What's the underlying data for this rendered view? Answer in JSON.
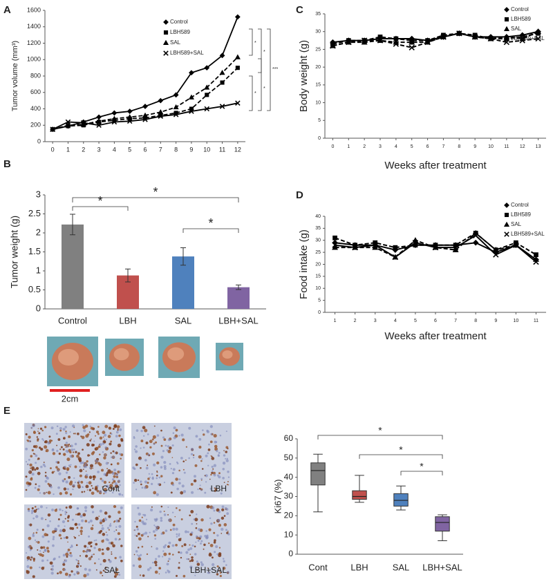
{
  "panel_labels": [
    "A",
    "B",
    "C",
    "D",
    "E"
  ],
  "scale_bar": "2cm",
  "micrographs": [
    "Cont",
    "LBH",
    "SAL",
    "LBH+SAL"
  ],
  "chart_data": [
    {
      "type": "line",
      "ylabel": "Tumor volume (mm³)",
      "x": [
        0,
        1,
        2,
        3,
        4,
        5,
        6,
        7,
        8,
        9,
        10,
        11,
        12
      ],
      "xlim": [
        -0.5,
        12.5
      ],
      "xticks": [
        0,
        1,
        2,
        3,
        4,
        5,
        6,
        7,
        8,
        9,
        10,
        11,
        12
      ],
      "ylim": [
        0,
        1600
      ],
      "yticks": [
        0,
        200,
        400,
        600,
        800,
        1000,
        1200,
        1400,
        1600
      ],
      "legend": "upper center",
      "series": [
        {
          "name": "Control",
          "color": "#000000",
          "marker": "diamond",
          "dash": "solid",
          "values": [
            150,
            190,
            240,
            300,
            350,
            370,
            430,
            500,
            570,
            840,
            900,
            1050,
            1520
          ]
        },
        {
          "name": "LBH589",
          "color": "#000000",
          "marker": "square",
          "dash": "dashed",
          "values": [
            150,
            190,
            200,
            240,
            260,
            280,
            290,
            320,
            350,
            400,
            570,
            720,
            900
          ]
        },
        {
          "name": "SAL",
          "color": "#000000",
          "marker": "triangle",
          "dash": "dashed",
          "values": [
            150,
            200,
            210,
            250,
            280,
            300,
            320,
            360,
            420,
            540,
            660,
            840,
            1030
          ]
        },
        {
          "name": "LBH589+SAL",
          "color": "#000000",
          "marker": "cross",
          "dash": "solid",
          "values": [
            150,
            240,
            230,
            200,
            240,
            250,
            270,
            310,
            330,
            370,
            400,
            430,
            470
          ]
        }
      ],
      "annotations": [
        "*",
        "*",
        "***",
        "*",
        "*"
      ]
    },
    {
      "type": "bar",
      "ylabel": "Tumor weight (g)",
      "categories": [
        "Control",
        "LBH",
        "SAL",
        "LBH+SAL"
      ],
      "values": [
        2.22,
        0.88,
        1.38,
        0.57
      ],
      "errors": [
        0.27,
        0.17,
        0.23,
        0.06
      ],
      "colors": [
        "#808080",
        "#c0504d",
        "#4f81bd",
        "#8064a2"
      ],
      "ylim": [
        0,
        3
      ],
      "yticks": [
        0,
        0.5,
        1,
        1.5,
        2,
        2.5,
        3
      ],
      "annotations": [
        "*",
        "*",
        "*"
      ]
    },
    {
      "type": "line",
      "ylabel": "Body weight (g)",
      "xlabel": "Weeks after treatment",
      "x": [
        0,
        1,
        2,
        3,
        4,
        5,
        6,
        7,
        8,
        9,
        10,
        11,
        12,
        13
      ],
      "xlim": [
        -0.5,
        13.5
      ],
      "xticks": [
        0,
        1,
        2,
        3,
        4,
        5,
        6,
        7,
        8,
        9,
        10,
        11,
        12,
        13
      ],
      "ylim": [
        0,
        35
      ],
      "yticks": [
        0,
        5,
        10,
        15,
        20,
        25,
        30,
        35
      ],
      "legend": "upper right",
      "series": [
        {
          "name": "Control",
          "color": "#000000",
          "marker": "diamond",
          "dash": "solid",
          "values": [
            27,
            27.5,
            27.5,
            28,
            28,
            28,
            27.5,
            28.5,
            29.5,
            28.5,
            28.5,
            28.5,
            29,
            30
          ]
        },
        {
          "name": "LBH589",
          "color": "#000000",
          "marker": "square",
          "dash": "dashed",
          "values": [
            26.5,
            27.5,
            27.5,
            28.5,
            28,
            27.5,
            27.5,
            29,
            29.5,
            29,
            28,
            28,
            28.5,
            29.5
          ]
        },
        {
          "name": "SAL",
          "color": "#000000",
          "marker": "triangle",
          "dash": "dashed",
          "values": [
            26,
            27,
            27,
            27.5,
            27,
            27,
            27,
            28.5,
            29.5,
            28.5,
            28,
            28.5,
            28,
            30
          ]
        },
        {
          "name": "LBH589+SAL",
          "color": "#000000",
          "marker": "cross",
          "dash": "dashed",
          "values": [
            26,
            27,
            27.5,
            27.5,
            26.5,
            25.5,
            27,
            28.5,
            29.5,
            28.5,
            28,
            27,
            27.5,
            28
          ]
        }
      ]
    },
    {
      "type": "line",
      "ylabel": "Food intake (g)",
      "xlabel": "Weeks after treatment",
      "x": [
        1,
        2,
        3,
        4,
        5,
        6,
        7,
        8,
        9,
        10,
        11
      ],
      "xlim": [
        0.5,
        11.5
      ],
      "xticks": [
        1,
        2,
        3,
        4,
        5,
        6,
        7,
        8,
        9,
        10,
        11
      ],
      "ylim": [
        0,
        40
      ],
      "yticks": [
        0,
        5,
        10,
        15,
        20,
        25,
        30,
        35,
        40
      ],
      "legend": "upper right",
      "series": [
        {
          "name": "Control",
          "color": "#000000",
          "marker": "diamond",
          "dash": "solid",
          "values": [
            29,
            28,
            28,
            26,
            28,
            28,
            28,
            29,
            25,
            28,
            22
          ]
        },
        {
          "name": "LBH589",
          "color": "#000000",
          "marker": "square",
          "dash": "dashed",
          "values": [
            31,
            28,
            29,
            27,
            28,
            28,
            28,
            33,
            26,
            29,
            24
          ]
        },
        {
          "name": "SAL",
          "color": "#000000",
          "marker": "triangle",
          "dash": "dashed",
          "values": [
            27,
            27,
            27,
            23,
            30,
            27,
            26,
            33,
            26,
            28,
            22
          ]
        },
        {
          "name": "LBH589+SAL",
          "color": "#000000",
          "marker": "cross",
          "dash": "solid",
          "values": [
            28,
            27,
            28,
            23,
            29,
            27,
            27,
            32,
            24,
            28,
            21
          ]
        }
      ]
    },
    {
      "type": "box",
      "ylabel": "Ki67 (%)",
      "categories": [
        "Cont",
        "LBH",
        "SAL",
        "LBH+SAL"
      ],
      "colors": [
        "#808080",
        "#c0504d",
        "#4f81bd",
        "#8064a2"
      ],
      "boxes": [
        {
          "min": 22,
          "q1": 36,
          "median": 43.5,
          "q3": 47.5,
          "max": 52
        },
        {
          "min": 27,
          "q1": 28.5,
          "median": 30,
          "q3": 33,
          "max": 41
        },
        {
          "min": 23,
          "q1": 25,
          "median": 28,
          "q3": 31.5,
          "max": 35.5
        },
        {
          "min": 7,
          "q1": 12,
          "median": 16.5,
          "q3": 19.5,
          "max": 20.5
        }
      ],
      "ylim": [
        0,
        60
      ],
      "yticks": [
        0,
        10,
        20,
        30,
        40,
        50,
        60
      ],
      "annotations": [
        "*",
        "*",
        "*"
      ]
    }
  ]
}
